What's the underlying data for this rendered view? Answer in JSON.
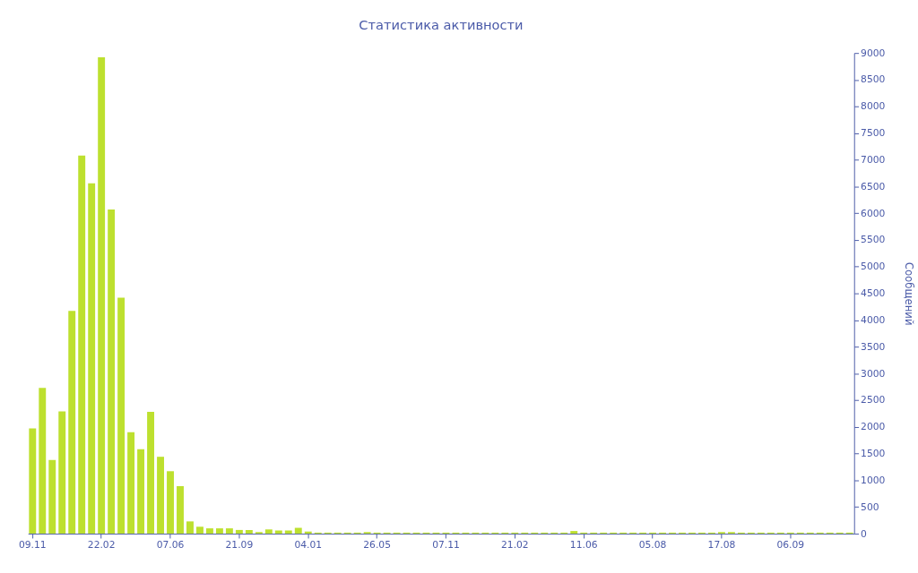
{
  "chart_data": {
    "type": "bar",
    "title": "Статистика активности",
    "y2label": "Сообщений",
    "categories": [
      "09.11",
      null,
      null,
      null,
      null,
      null,
      null,
      "22.02",
      null,
      null,
      null,
      null,
      null,
      null,
      "07.06",
      null,
      null,
      null,
      null,
      null,
      null,
      "21.09",
      null,
      null,
      null,
      null,
      null,
      null,
      "04.01",
      null,
      null,
      null,
      null,
      null,
      null,
      "26.05",
      null,
      null,
      null,
      null,
      null,
      null,
      "07.11",
      null,
      null,
      null,
      null,
      null,
      null,
      "21.02",
      null,
      null,
      null,
      null,
      null,
      null,
      "11.06",
      null,
      null,
      null,
      null,
      null,
      null,
      "05.08",
      null,
      null,
      null,
      null,
      null,
      null,
      "17.08",
      null,
      null,
      null,
      null,
      null,
      null,
      "06.09",
      null,
      null,
      null,
      null,
      null,
      null
    ],
    "series": [
      {
        "color": "#bde02f",
        "axis": "y2",
        "values": [
          1970,
          2730,
          1380,
          2290,
          4170,
          7080,
          6560,
          8920,
          6070,
          4420,
          1900,
          1580,
          2280,
          1440,
          1170,
          890,
          230,
          130,
          100,
          100,
          100,
          70,
          70,
          30,
          80,
          60,
          60,
          110,
          40,
          20,
          20,
          20,
          20,
          20,
          30,
          20,
          20,
          20,
          20,
          20,
          20,
          20,
          20,
          20,
          20,
          20,
          20,
          20,
          20,
          20,
          20,
          20,
          20,
          20,
          20,
          50,
          20,
          20,
          20,
          20,
          20,
          20,
          20,
          20,
          20,
          20,
          20,
          20,
          20,
          20,
          30,
          30,
          20,
          20,
          20,
          20,
          20,
          20,
          20,
          20,
          20,
          20,
          20,
          20
        ]
      }
    ],
    "y2lim": [
      0,
      9000
    ],
    "y2ticks": [
      0,
      500,
      1000,
      1500,
      2000,
      2500,
      3000,
      3500,
      4000,
      4500,
      5000,
      5500,
      6000,
      6500,
      7000,
      7500,
      8000,
      8500,
      9000
    ],
    "grid": false
  }
}
